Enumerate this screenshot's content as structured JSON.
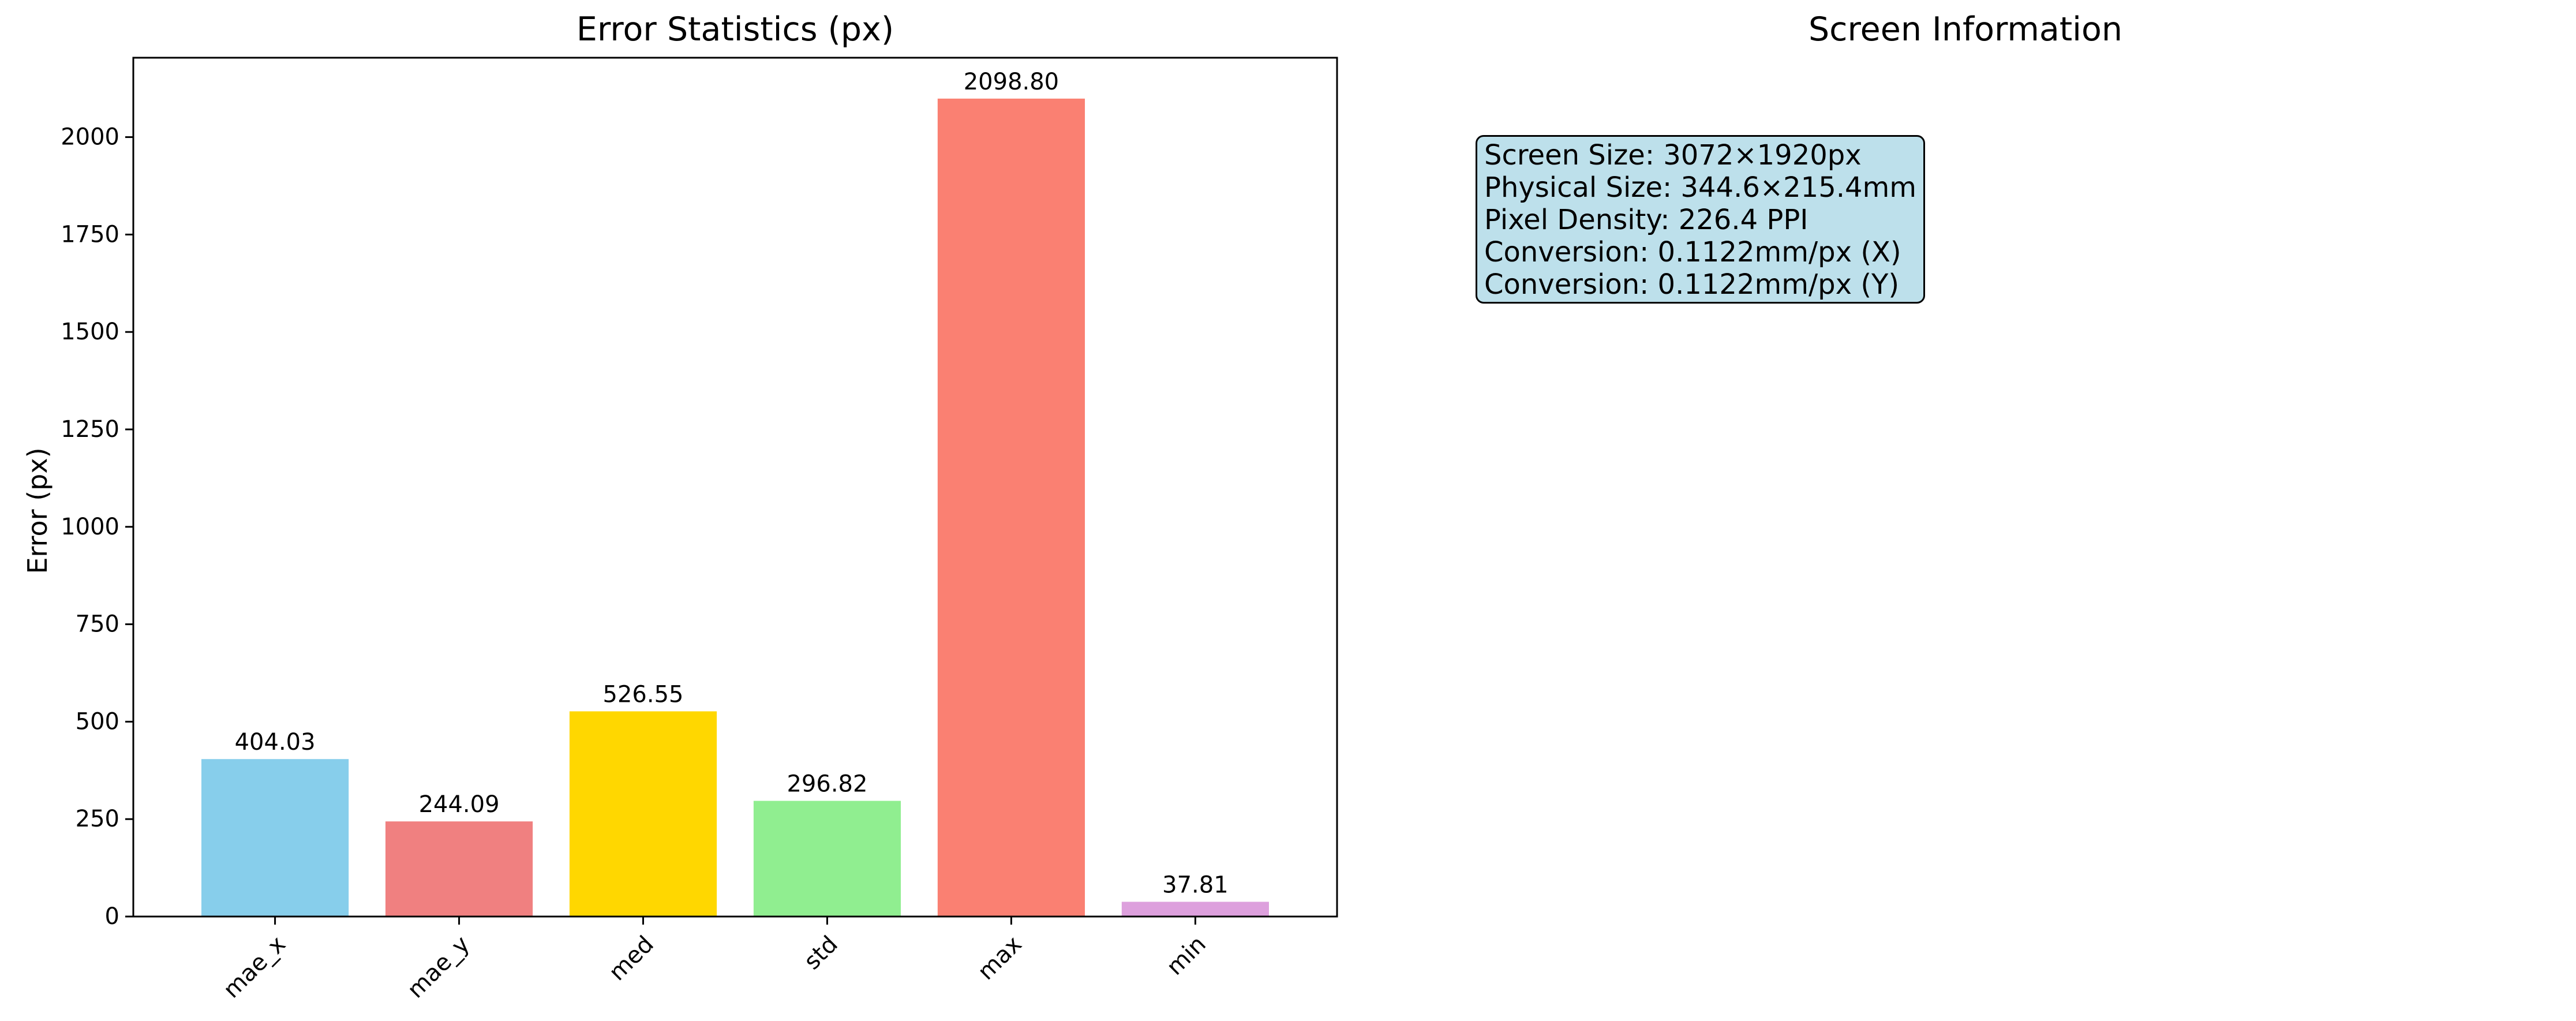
{
  "left_panel": {
    "title": "Error Statistics (px)"
  },
  "right_panel": {
    "title": "Screen Information",
    "info_lines": [
      "Screen Size: 3072×1920px",
      "Physical Size: 344.6×215.4mm",
      "Pixel Density: 226.4 PPI",
      "Conversion: 0.1122mm/px (X)",
      "Conversion: 0.1122mm/px (Y)"
    ],
    "box_color": "#add8e6"
  },
  "chart_data": {
    "type": "bar",
    "title": "Error Statistics (px)",
    "xlabel": "",
    "ylabel": "Error (px)",
    "categories": [
      "mae_x",
      "mae_y",
      "med",
      "std",
      "max",
      "min"
    ],
    "values": [
      404.03,
      244.09,
      526.55,
      296.82,
      2098.8,
      37.81
    ],
    "value_labels": [
      "404.03",
      "244.09",
      "526.55",
      "296.82",
      "2098.80",
      "37.81"
    ],
    "colors": [
      "#87ceeb",
      "#f08080",
      "#ffd700",
      "#90ee90",
      "#fa8072",
      "#dda0dd"
    ],
    "ylim": [
      0,
      2203.74
    ],
    "yticks": [
      0,
      250,
      500,
      750,
      1000,
      1250,
      1500,
      1750,
      2000
    ],
    "xtick_rotation": 45,
    "grid": false,
    "legend": "none"
  }
}
